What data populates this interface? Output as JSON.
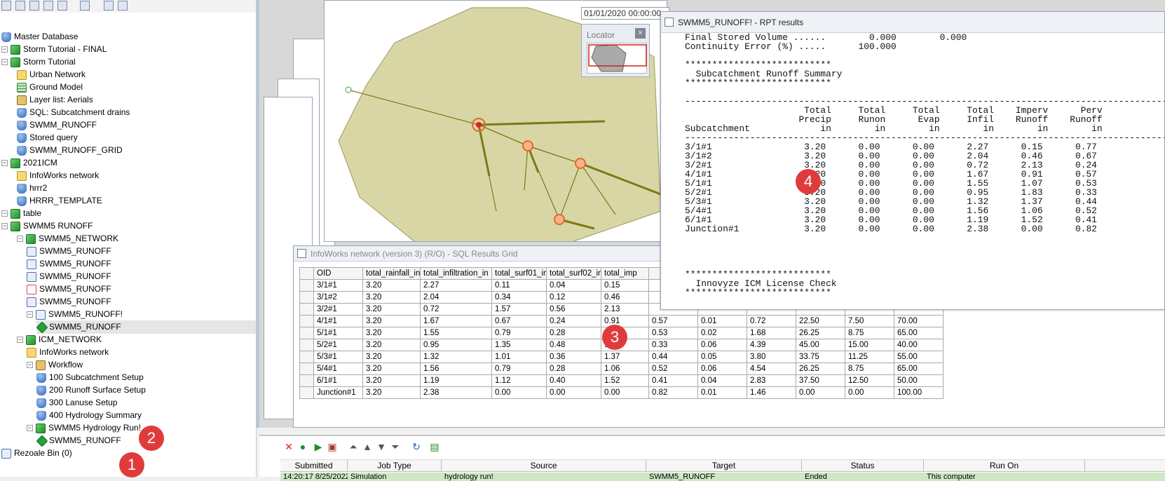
{
  "tree": {
    "items": [
      {
        "label": "Master Database",
        "icon": "database-root-icon"
      },
      {
        "label": "Storm Tutorial - FINAL",
        "icon": "model-group-icon"
      },
      {
        "label": "Storm Tutorial",
        "icon": "model-group-icon"
      },
      {
        "label": "Urban Network",
        "icon": "network-icon"
      },
      {
        "label": "Ground Model",
        "icon": "ground-model-icon"
      },
      {
        "label": "Layer list: Aerials",
        "icon": "layer-list-icon"
      },
      {
        "label": "SQL: Subcatchment drains",
        "icon": "sql-icon"
      },
      {
        "label": "SWMM_RUNOFF",
        "icon": "database-icon"
      },
      {
        "label": "Stored query",
        "icon": "database-icon"
      },
      {
        "label": "SWMM_RUNOFF_GRID",
        "icon": "database-icon"
      },
      {
        "label": "2021ICM",
        "icon": "model-group-icon"
      },
      {
        "label": "InfoWorks network",
        "icon": "network-icon"
      },
      {
        "label": "hrrr2",
        "icon": "rainfall-icon"
      },
      {
        "label": "HRRR_TEMPLATE",
        "icon": "rainfall-icon"
      },
      {
        "label": "table",
        "icon": "model-group-icon"
      },
      {
        "label": "SWMM5 RUNOFF",
        "icon": "model-group-icon"
      },
      {
        "label": "SWMM5_NETWORK",
        "icon": "model-group-icon"
      },
      {
        "label": "SWMM5_RUNOFF",
        "icon": "swmm-network-icon"
      },
      {
        "label": "SWMM5_RUNOFF",
        "icon": "swmm-rainfall-icon"
      },
      {
        "label": "SWMM5_RUNOFF",
        "icon": "swmm-options-icon"
      },
      {
        "label": "SWMM5_RUNOFF",
        "icon": "swmm-timeseries-icon"
      },
      {
        "label": "SWMM5_RUNOFF",
        "icon": "swmm-climate-icon"
      },
      {
        "label": "SWMM5_RUNOFF!",
        "icon": "swmm-run-icon"
      },
      {
        "label": "SWMM5_RUNOFF",
        "icon": "simulation-icon"
      },
      {
        "label": "ICM_NETWORK",
        "icon": "model-group-icon"
      },
      {
        "label": "InfoWorks network",
        "icon": "network-icon"
      },
      {
        "label": "Workflow",
        "icon": "workflow-icon"
      },
      {
        "label": "100 Subcatchment Setup",
        "icon": "database-icon"
      },
      {
        "label": "200 Runoff Surface Setup",
        "icon": "database-icon"
      },
      {
        "label": "300 Lanuse Setup",
        "icon": "database-icon"
      },
      {
        "label": "400 Hydrology Summary",
        "icon": "database-icon"
      },
      {
        "label": "SWMM5 Hydrology Run!",
        "icon": "run-icon"
      },
      {
        "label": "SWMM5_RUNOFF",
        "icon": "simulation-icon"
      },
      {
        "label": "Rezoale Bin (0)",
        "icon": "recycle-bin-icon"
      }
    ]
  },
  "map": {
    "timestamp": "01/01/2020 00:00:00",
    "locator_title": "Locator",
    "locator_close": "×",
    "colors": {
      "catchment_fill": "#d9d6a6",
      "link": "#7a7a16",
      "node": "#e06a2a"
    }
  },
  "rpt": {
    "title": "SWMM5_RUNOFF! - RPT results",
    "lines": [
      "Final Stored Volume ......        0.000        0.000",
      "Continuity Error (%) .....      100.000",
      "",
      "***************************",
      "  Subcatchment Runoff Summary",
      "***************************",
      "",
      "-------------------------------------------------------------------------------------------------",
      "                      Total     Total     Total     Total    Imperv      Perv",
      "                     Precip     Runon      Evap     Infil    Runoff    Runoff",
      "Subcatchment             in        in        in        in        in        in",
      "-------------------------------------------------------------------------------------------------",
      "3/1#1                 3.20      0.00      0.00      2.27      0.15      0.77",
      "3/1#2                 3.20      0.00      0.00      2.04      0.46      0.67",
      "3/2#1                 3.20      0.00      0.00      0.72      2.13      0.24",
      "4/1#1                 3.20      0.00      0.00      1.67      0.91      0.57",
      "5/1#1                 3.20      0.00      0.00      1.55      1.07      0.53",
      "5/2#1                 3.20      0.00      0.00      0.95      1.83      0.33",
      "5/3#1                 3.20      0.00      0.00      1.32      1.37      0.44",
      "5/4#1                 3.20      0.00      0.00      1.56      1.06      0.52",
      "6/1#1                 3.20      0.00      0.00      1.19      1.52      0.41",
      "Junction#1            3.20      0.00      0.00      2.38      0.00      0.82",
      "",
      "",
      "",
      "",
      "***************************",
      "  Innovyze ICM License Check",
      "***************************"
    ]
  },
  "sql": {
    "title": "InfoWorks network (version 3) (R/O) - SQL Results Grid",
    "columns": [
      "OID",
      "total_rainfall_in",
      "total_infiltration_in",
      "total_surf01_in",
      "total_surf02_in",
      "total_imp",
      "",
      "",
      "",
      "",
      "",
      ""
    ],
    "rows": [
      [
        "3/1#1",
        "3.20",
        "2.27",
        "0.11",
        "0.04",
        "0.15",
        "",
        "",
        "",
        "",
        "",
        ""
      ],
      [
        "3/1#2",
        "3.20",
        "2.04",
        "0.34",
        "0.12",
        "0.46",
        "",
        "",
        "",
        "",
        "",
        ""
      ],
      [
        "3/2#1",
        "3.20",
        "0.72",
        "1.57",
        "0.56",
        "2.13",
        "",
        "",
        "",
        "",
        "",
        ""
      ],
      [
        "4/1#1",
        "3.20",
        "1.67",
        "0.67",
        "0.24",
        "0.91",
        "0.57",
        "0.01",
        "0.72",
        "22.50",
        "7.50",
        "70.00"
      ],
      [
        "5/1#1",
        "3.20",
        "1.55",
        "0.79",
        "0.28",
        "1.07",
        "0.53",
        "0.02",
        "1.68",
        "26.25",
        "8.75",
        "65.00"
      ],
      [
        "5/2#1",
        "3.20",
        "0.95",
        "1.35",
        "0.48",
        "1.83",
        "0.33",
        "0.06",
        "4.39",
        "45.00",
        "15.00",
        "40.00"
      ],
      [
        "5/3#1",
        "3.20",
        "1.32",
        "1.01",
        "0.36",
        "1.37",
        "0.44",
        "0.05",
        "3.80",
        "33.75",
        "11.25",
        "55.00"
      ],
      [
        "5/4#1",
        "3.20",
        "1.56",
        "0.79",
        "0.28",
        "1.06",
        "0.52",
        "0.06",
        "4.54",
        "26.25",
        "8.75",
        "65.00"
      ],
      [
        "6/1#1",
        "3.20",
        "1.19",
        "1.12",
        "0.40",
        "1.52",
        "0.41",
        "0.04",
        "2.83",
        "37.50",
        "12.50",
        "50.00"
      ],
      [
        "Junction#1",
        "3.20",
        "2.38",
        "0.00",
        "0.00",
        "0.00",
        "0.82",
        "0.01",
        "1.46",
        "0.00",
        "0.00",
        "100.00"
      ]
    ]
  },
  "jobs": {
    "columns": [
      "Submitted",
      "Job Type",
      "Source",
      "Target",
      "Status",
      "Run On"
    ],
    "row": [
      "14:20:17 8/25/2022",
      "Simulation",
      "hydrology run!",
      "SWMM5_RUNOFF",
      "Ended",
      "This computer"
    ]
  },
  "badges": [
    "1",
    "2",
    "3",
    "4"
  ],
  "colors": {
    "badge": "#e03b3b",
    "job_row": "#cde8c2"
  }
}
